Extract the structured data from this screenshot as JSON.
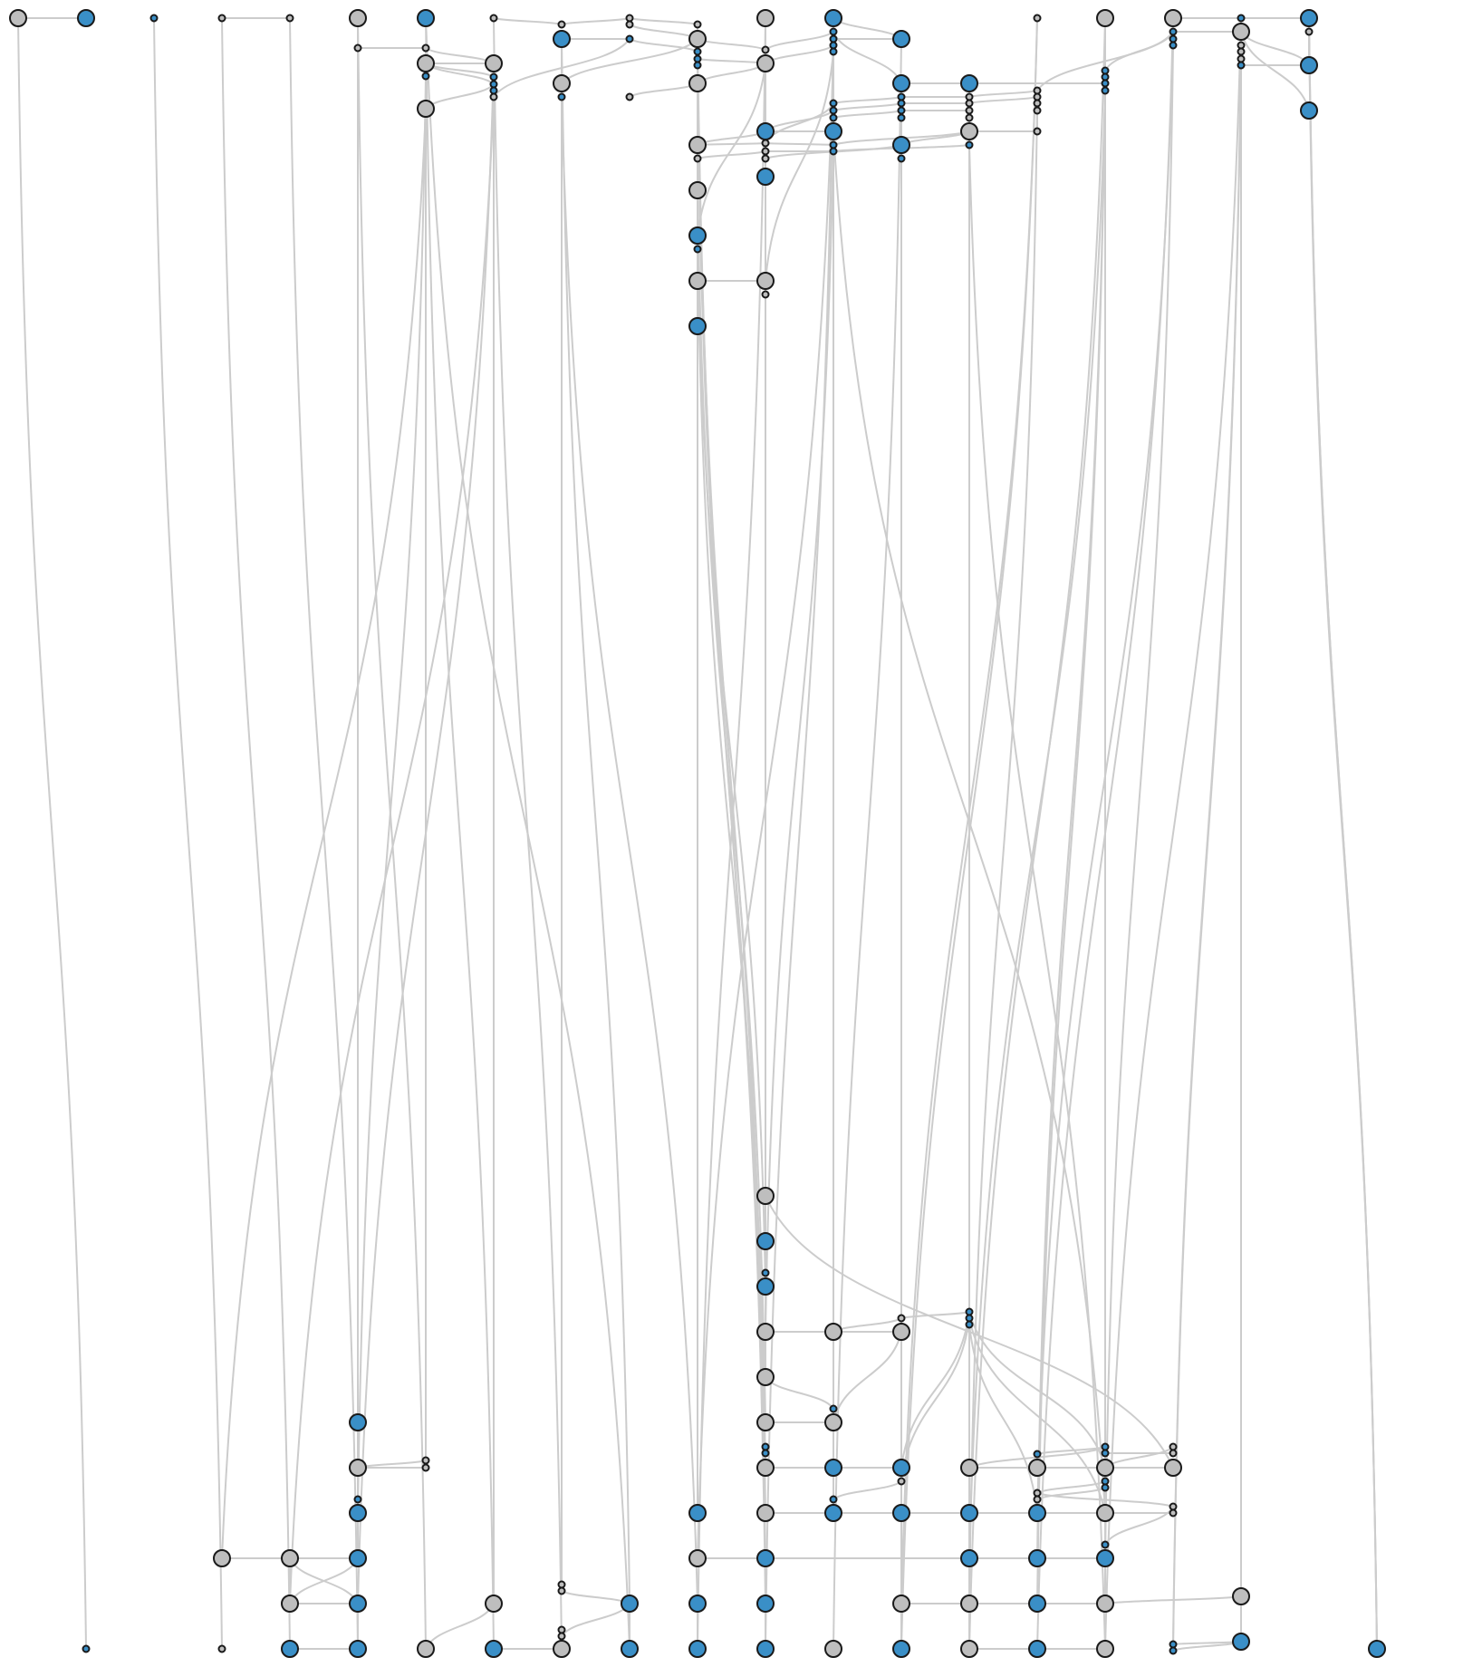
{
  "colors": {
    "background": "#ffffff",
    "edge": "#cccccc",
    "node_blue": "#3a8fc7",
    "node_gray": "#bebebe",
    "node_stroke": "#1a1a1a"
  },
  "legend": [],
  "node_kinds": [
    "gray-node",
    "blue-node",
    "small-connector-node"
  ]
}
